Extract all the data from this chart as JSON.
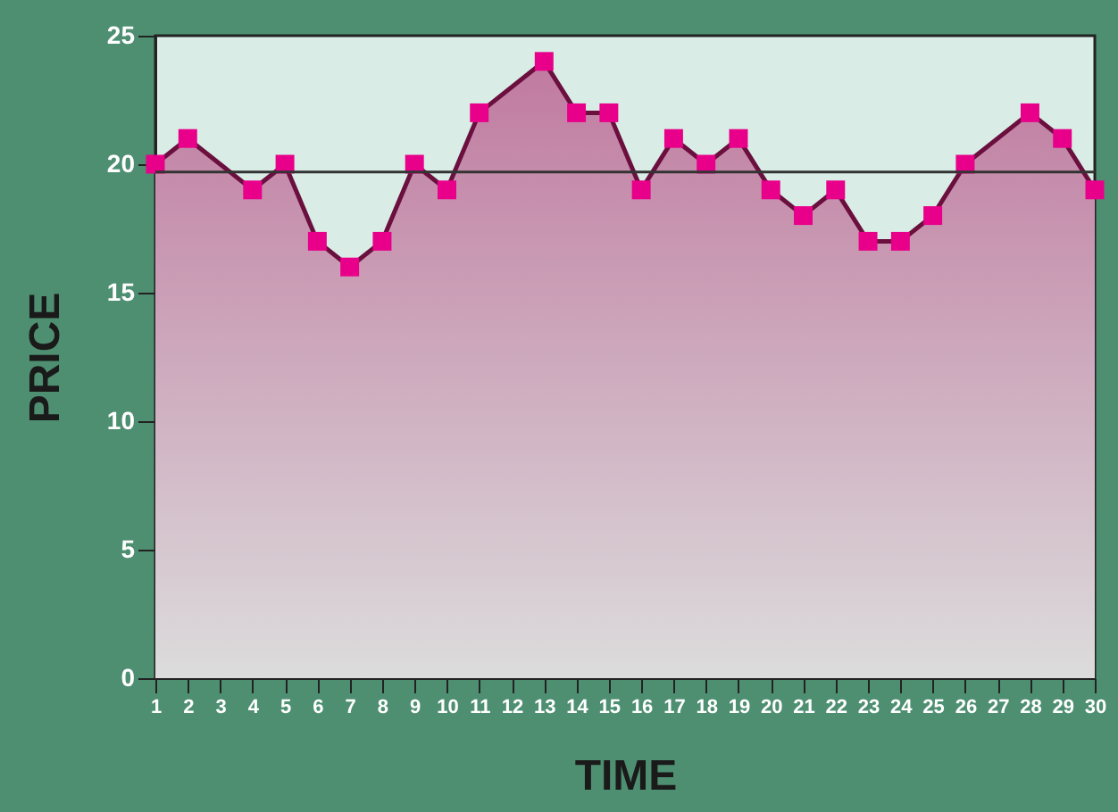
{
  "chart_data": {
    "type": "area",
    "xlabel": "TIME",
    "ylabel": "PRICE",
    "x": [
      1,
      2,
      4,
      5,
      6,
      7,
      8,
      9,
      10,
      11,
      13,
      14,
      15,
      16,
      17,
      18,
      19,
      20,
      21,
      22,
      23,
      24,
      25,
      26,
      28,
      29,
      30
    ],
    "series": [
      {
        "color": "#c07aa0",
        "values": [
          20,
          21,
          19,
          20,
          17,
          16,
          17,
          20,
          19,
          22,
          24,
          22,
          22,
          19,
          21,
          20,
          21,
          19,
          18,
          19,
          17,
          17,
          18,
          20,
          22,
          21,
          19
        ]
      }
    ],
    "xlim": [
      1,
      30
    ],
    "xticks": [
      1,
      2,
      3,
      4,
      5,
      6,
      7,
      8,
      9,
      10,
      11,
      12,
      13,
      14,
      15,
      16,
      17,
      18,
      19,
      20,
      21,
      22,
      23,
      24,
      25,
      26,
      27,
      28,
      29,
      30
    ],
    "ylim": [
      0,
      25
    ],
    "yticks": [
      0,
      5,
      10,
      15,
      20,
      25
    ],
    "ref_lines": [
      {
        "axis": "y",
        "value": 19.7,
        "color": "#333333"
      }
    ],
    "marker": "square",
    "line_style": "solid",
    "grid": false
  }
}
